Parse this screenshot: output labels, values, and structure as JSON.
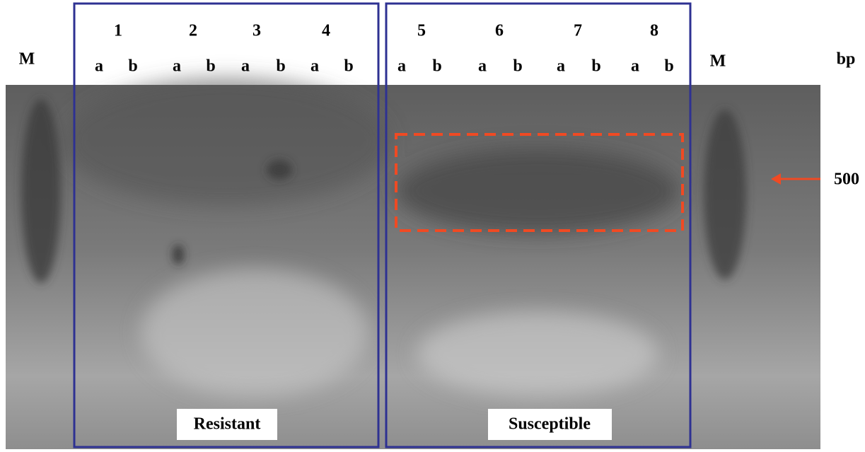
{
  "marker_left": "M",
  "marker_right": "M",
  "unit": "bp",
  "size_marker": 500,
  "groups": [
    {
      "label": "Resistant",
      "lanes": [
        {
          "number": 1,
          "sublanes": [
            "a",
            "b"
          ]
        },
        {
          "number": 2,
          "sublanes": [
            "a",
            "b"
          ]
        },
        {
          "number": 3,
          "sublanes": [
            "a",
            "b"
          ]
        },
        {
          "number": 4,
          "sublanes": [
            "a",
            "b"
          ]
        }
      ]
    },
    {
      "label": "Susceptible",
      "lanes": [
        {
          "number": 5,
          "sublanes": [
            "a",
            "b"
          ]
        },
        {
          "number": 6,
          "sublanes": [
            "a",
            "b"
          ]
        },
        {
          "number": 7,
          "sublanes": [
            "a",
            "b"
          ]
        },
        {
          "number": 8,
          "sublanes": [
            "a",
            "b"
          ]
        }
      ]
    }
  ]
}
